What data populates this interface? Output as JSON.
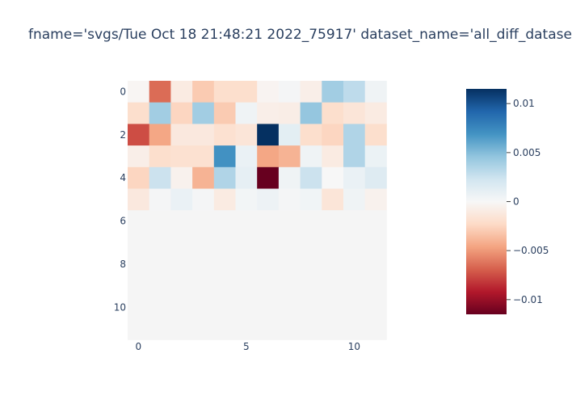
{
  "chart_data": {
    "type": "heatmap",
    "title": "fname='svgs/Tue Oct 18 21:48:21 2022_75917' dataset_name='all_diff_datase",
    "x_ticks": [
      "0",
      "5",
      "10"
    ],
    "y_ticks": [
      "0",
      "2",
      "4",
      "6",
      "8",
      "10"
    ],
    "n_rows": 12,
    "n_cols": 12,
    "zmin": -0.0115,
    "zmax": 0.0115,
    "colorscale": "RdBu",
    "colorbar_ticks": [
      "0.01",
      "0.005",
      "0",
      "−0.005",
      "−0.01"
    ],
    "empty_rows": [
      6,
      7,
      8,
      9,
      10,
      11
    ],
    "values": [
      [
        -0.0002,
        -0.0065,
        -0.001,
        -0.003,
        -0.002,
        -0.002,
        -0.0003,
        0.0002,
        -0.0007,
        0.004,
        0.003,
        0.0005
      ],
      [
        -0.002,
        0.004,
        -0.0025,
        0.004,
        -0.003,
        0.0005,
        -0.0007,
        -0.0008,
        0.0045,
        -0.002,
        -0.0015,
        -0.001
      ],
      [
        -0.0075,
        -0.0045,
        -0.0012,
        -0.0012,
        -0.0018,
        -0.0015,
        0.0115,
        0.0012,
        -0.002,
        -0.0025,
        0.0035,
        -0.002
      ],
      [
        -0.0007,
        -0.002,
        -0.0018,
        -0.0018,
        0.007,
        0.0008,
        -0.0045,
        -0.004,
        0.0005,
        -0.001,
        0.0035,
        0.0007
      ],
      [
        -0.0025,
        0.0025,
        -0.0005,
        -0.004,
        0.0035,
        0.001,
        -0.0115,
        0.0005,
        0.0025,
        0.0,
        0.0008,
        0.0015
      ],
      [
        -0.0012,
        0.0002,
        0.0008,
        0.0002,
        -0.001,
        0.0003,
        0.0006,
        0.0002,
        0.0004,
        -0.0015,
        0.0005,
        -0.0005
      ]
    ]
  },
  "colors": {
    "empty_cell": "#f5f5f5",
    "text": "#2a3f5f"
  }
}
